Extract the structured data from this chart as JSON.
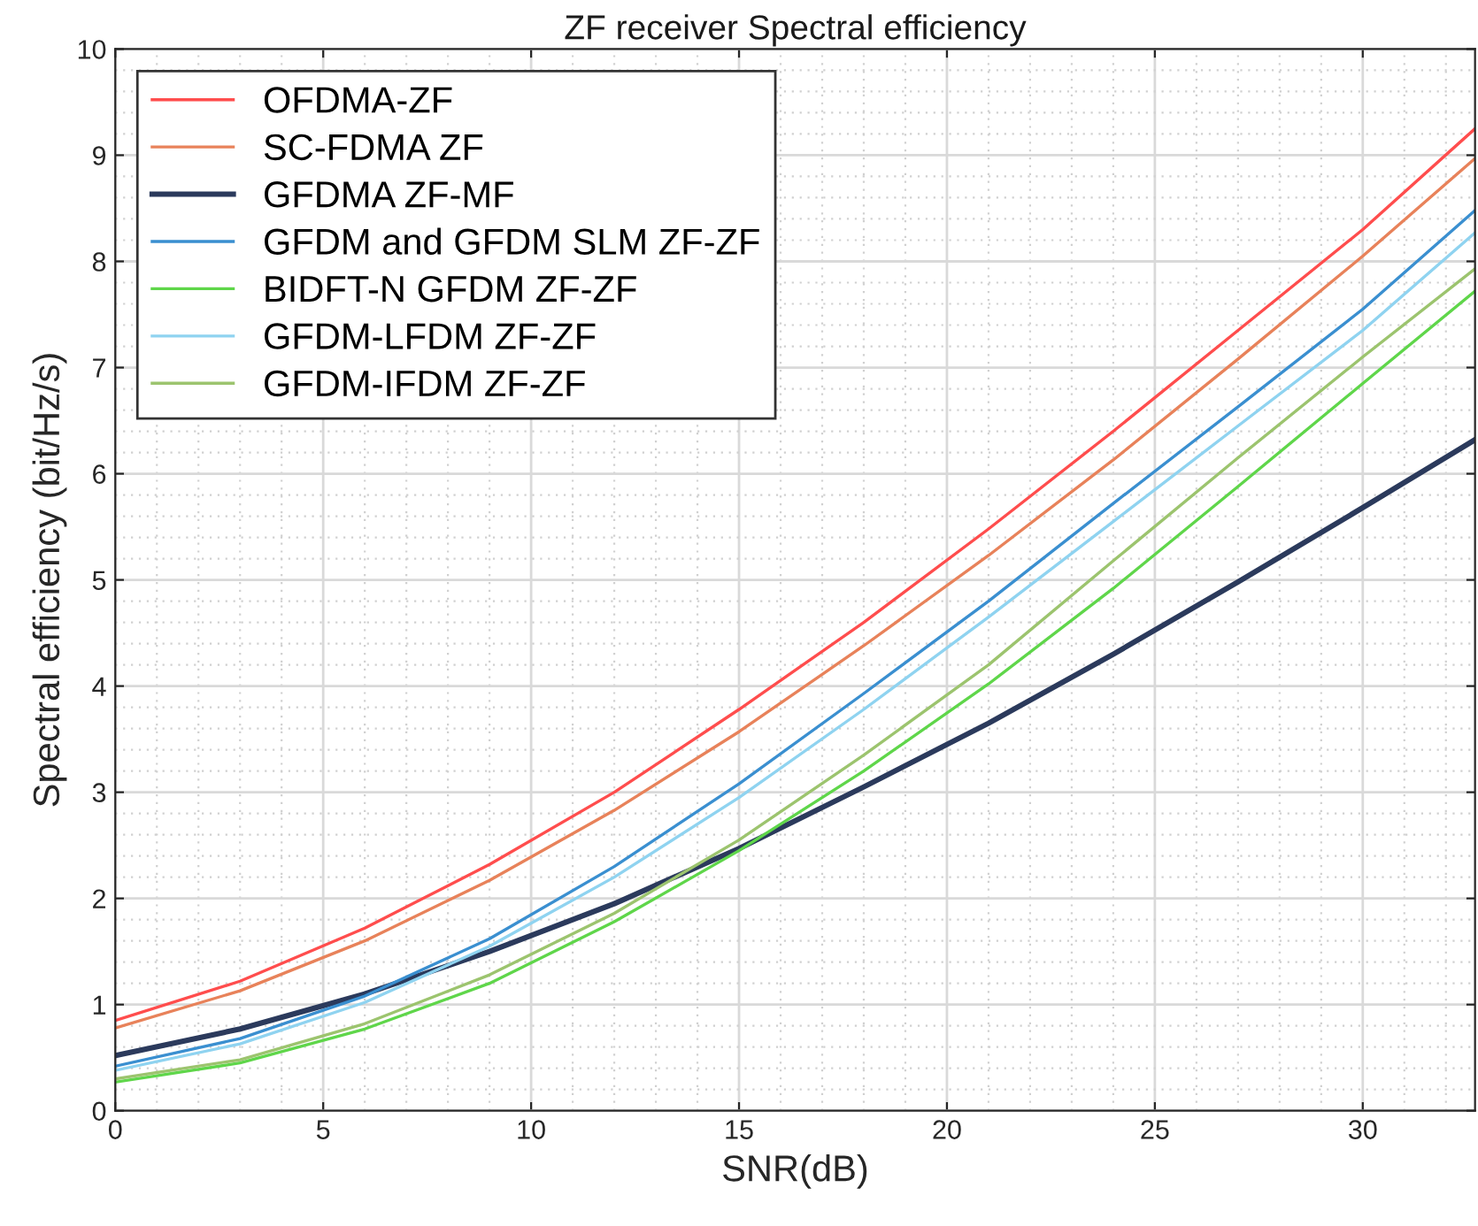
{
  "chart_data": {
    "type": "line",
    "title": "ZF receiver Spectral efficiency",
    "xlabel": "SNR(dB)",
    "ylabel": "Spectral efficiency (bit/Hz/s)",
    "x": [
      0,
      3,
      6,
      9,
      12,
      15,
      18,
      21,
      24,
      27,
      30,
      32.7
    ],
    "series": [
      {
        "name": "OFDMA-ZF",
        "color": "#ff4d4d",
        "values": [
          0.85,
          1.22,
          1.72,
          2.32,
          3.0,
          3.78,
          4.6,
          5.48,
          6.4,
          7.35,
          8.3,
          9.25
        ]
      },
      {
        "name": "SC-FDMA ZF",
        "color": "#e8825a",
        "values": [
          0.78,
          1.13,
          1.6,
          2.17,
          2.83,
          3.57,
          4.38,
          5.23,
          6.13,
          7.08,
          8.05,
          8.97
        ]
      },
      {
        "name": "GFDMA ZF-MF",
        "color": "#2b3a5c",
        "values": [
          0.52,
          0.77,
          1.1,
          1.5,
          1.95,
          2.47,
          3.05,
          3.65,
          4.3,
          4.98,
          5.68,
          6.32
        ]
      },
      {
        "name": "GFDM and GFDM SLM ZF-ZF",
        "color": "#3a8fd0",
        "values": [
          0.42,
          0.68,
          1.08,
          1.62,
          2.3,
          3.08,
          3.93,
          4.8,
          5.72,
          6.63,
          7.55,
          8.48
        ]
      },
      {
        "name": "BIDFT-N GFDM ZF-ZF",
        "color": "#5fd64a",
        "values": [
          0.27,
          0.45,
          0.77,
          1.2,
          1.78,
          2.45,
          3.2,
          4.02,
          4.92,
          5.88,
          6.85,
          7.72
        ]
      },
      {
        "name": "GFDM-LFDM ZF-ZF",
        "color": "#8fd3f0",
        "values": [
          0.38,
          0.63,
          1.02,
          1.55,
          2.2,
          2.95,
          3.78,
          4.65,
          5.55,
          6.45,
          7.35,
          8.27
        ]
      },
      {
        "name": "GFDM-IFDM ZF-ZF",
        "color": "#9cc46e",
        "values": [
          0.3,
          0.48,
          0.82,
          1.28,
          1.86,
          2.55,
          3.35,
          4.2,
          5.18,
          6.15,
          7.1,
          7.93
        ]
      }
    ],
    "xlim": [
      0,
      32.7
    ],
    "ylim": [
      0,
      10
    ],
    "xticks": [
      0,
      5,
      10,
      15,
      20,
      25,
      30
    ],
    "yticks": [
      0,
      1,
      2,
      3,
      4,
      5,
      6,
      7,
      8,
      9,
      10
    ],
    "grid": true,
    "legend": "top left",
    "marker": "none",
    "line_style": "solid"
  }
}
